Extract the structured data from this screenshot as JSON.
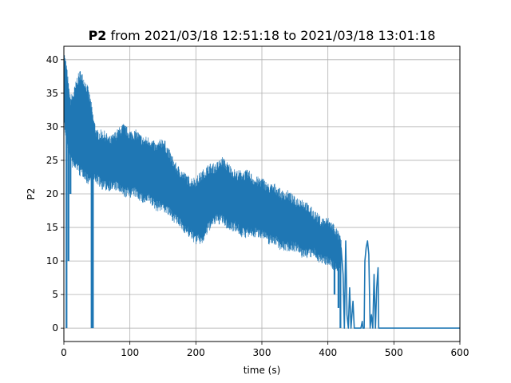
{
  "chart_data": {
    "type": "line",
    "title": {
      "bold": "P2",
      "rest": " from 2021/03/18 12:51:18 to 2021/03/18 13:01:18"
    },
    "xlabel": "time (s)",
    "ylabel": "P2",
    "xlim": [
      0,
      600
    ],
    "ylim": [
      -2,
      42
    ],
    "x_ticks": [
      0,
      100,
      200,
      300,
      400,
      500,
      600
    ],
    "y_ticks": [
      0,
      5,
      10,
      15,
      20,
      25,
      30,
      35,
      40
    ],
    "grid": true,
    "colors": {
      "line": "#1f77b4",
      "grid": "#b0b0b0"
    },
    "series": [
      {
        "envelope": {
          "x": [
            0,
            2,
            4,
            6,
            7,
            10,
            15,
            20,
            25,
            30,
            35,
            40,
            45,
            50,
            60,
            70,
            80,
            90,
            100,
            110,
            120,
            130,
            140,
            150,
            160,
            170,
            180,
            190,
            200,
            210,
            220,
            230,
            240,
            250,
            260,
            270,
            280,
            290,
            300,
            310,
            320,
            330,
            340,
            350,
            360,
            370,
            380,
            390,
            400,
            410,
            415,
            420
          ],
          "upper": [
            40,
            39,
            38,
            36,
            35,
            33,
            34,
            36,
            37,
            36,
            35,
            33,
            30,
            28,
            28,
            27,
            28,
            29,
            28,
            28,
            27,
            27,
            26,
            27,
            25,
            23,
            22,
            21,
            21,
            22,
            23,
            23,
            24,
            23,
            22,
            22,
            22,
            21,
            21,
            20,
            20,
            19,
            19,
            18,
            18,
            17,
            16,
            15,
            15,
            14,
            13,
            12
          ],
          "lower": [
            33,
            30,
            29,
            28,
            27,
            26,
            25,
            25,
            24,
            24,
            23,
            23,
            23,
            23,
            22,
            22,
            22,
            21,
            21,
            21,
            20,
            20,
            19,
            19,
            18,
            17,
            16,
            15,
            14,
            14,
            16,
            17,
            17,
            16,
            16,
            15,
            15,
            15,
            15,
            14,
            14,
            13,
            13,
            13,
            12,
            12,
            12,
            11,
            11,
            10,
            10,
            10
          ]
        },
        "spikes": [
          {
            "x": 4,
            "y": 0
          },
          {
            "x": 7,
            "y": 10
          },
          {
            "x": 10,
            "y": 20
          },
          {
            "x": 25,
            "y": 25
          },
          {
            "x": 42,
            "y": 0
          },
          {
            "x": 44,
            "y": 0
          },
          {
            "x": 410,
            "y": 5
          },
          {
            "x": 416,
            "y": 3
          },
          {
            "x": 419,
            "y": 0
          }
        ],
        "tail": [
          [
            420,
            12
          ],
          [
            423,
            8
          ],
          [
            425,
            0
          ],
          [
            427,
            13
          ],
          [
            429,
            2
          ],
          [
            431,
            0
          ],
          [
            433,
            6
          ],
          [
            435,
            0
          ],
          [
            438,
            4
          ],
          [
            440,
            0
          ],
          [
            445,
            0
          ],
          [
            450,
            0
          ],
          [
            452,
            1
          ],
          [
            453,
            0
          ],
          [
            455,
            0
          ],
          [
            456,
            10
          ],
          [
            458,
            12
          ],
          [
            460,
            13
          ],
          [
            462,
            11
          ],
          [
            464,
            0
          ],
          [
            466,
            2
          ],
          [
            468,
            0
          ],
          [
            470,
            8
          ],
          [
            472,
            0
          ],
          [
            474,
            6
          ],
          [
            476,
            9
          ],
          [
            477,
            0
          ],
          [
            480,
            0
          ],
          [
            500,
            0
          ],
          [
            550,
            0
          ],
          [
            600,
            0
          ]
        ]
      }
    ]
  }
}
